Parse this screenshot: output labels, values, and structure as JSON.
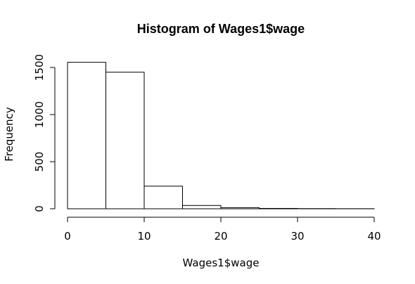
{
  "chart_data": {
    "type": "bar",
    "title": "Histogram of Wages1$wage",
    "xlabel": "Wages1$wage",
    "ylabel": "Frequency",
    "bins": [
      {
        "start": 0,
        "end": 5,
        "count": 1555
      },
      {
        "start": 5,
        "end": 10,
        "count": 1450
      },
      {
        "start": 10,
        "end": 15,
        "count": 240
      },
      {
        "start": 15,
        "end": 20,
        "count": 35
      },
      {
        "start": 20,
        "end": 25,
        "count": 12
      },
      {
        "start": 25,
        "end": 30,
        "count": 4
      },
      {
        "start": 30,
        "end": 35,
        "count": 2
      },
      {
        "start": 35,
        "end": 40,
        "count": 1
      }
    ],
    "xlim": [
      0,
      40
    ],
    "ylim": [
      0,
      1500
    ],
    "x_ticks": [
      "0",
      "10",
      "20",
      "30",
      "40"
    ],
    "y_ticks": [
      "0",
      "500",
      "1000",
      "1500"
    ],
    "bar_fill": "#ffffff",
    "bar_stroke": "#000000",
    "grid": false
  }
}
